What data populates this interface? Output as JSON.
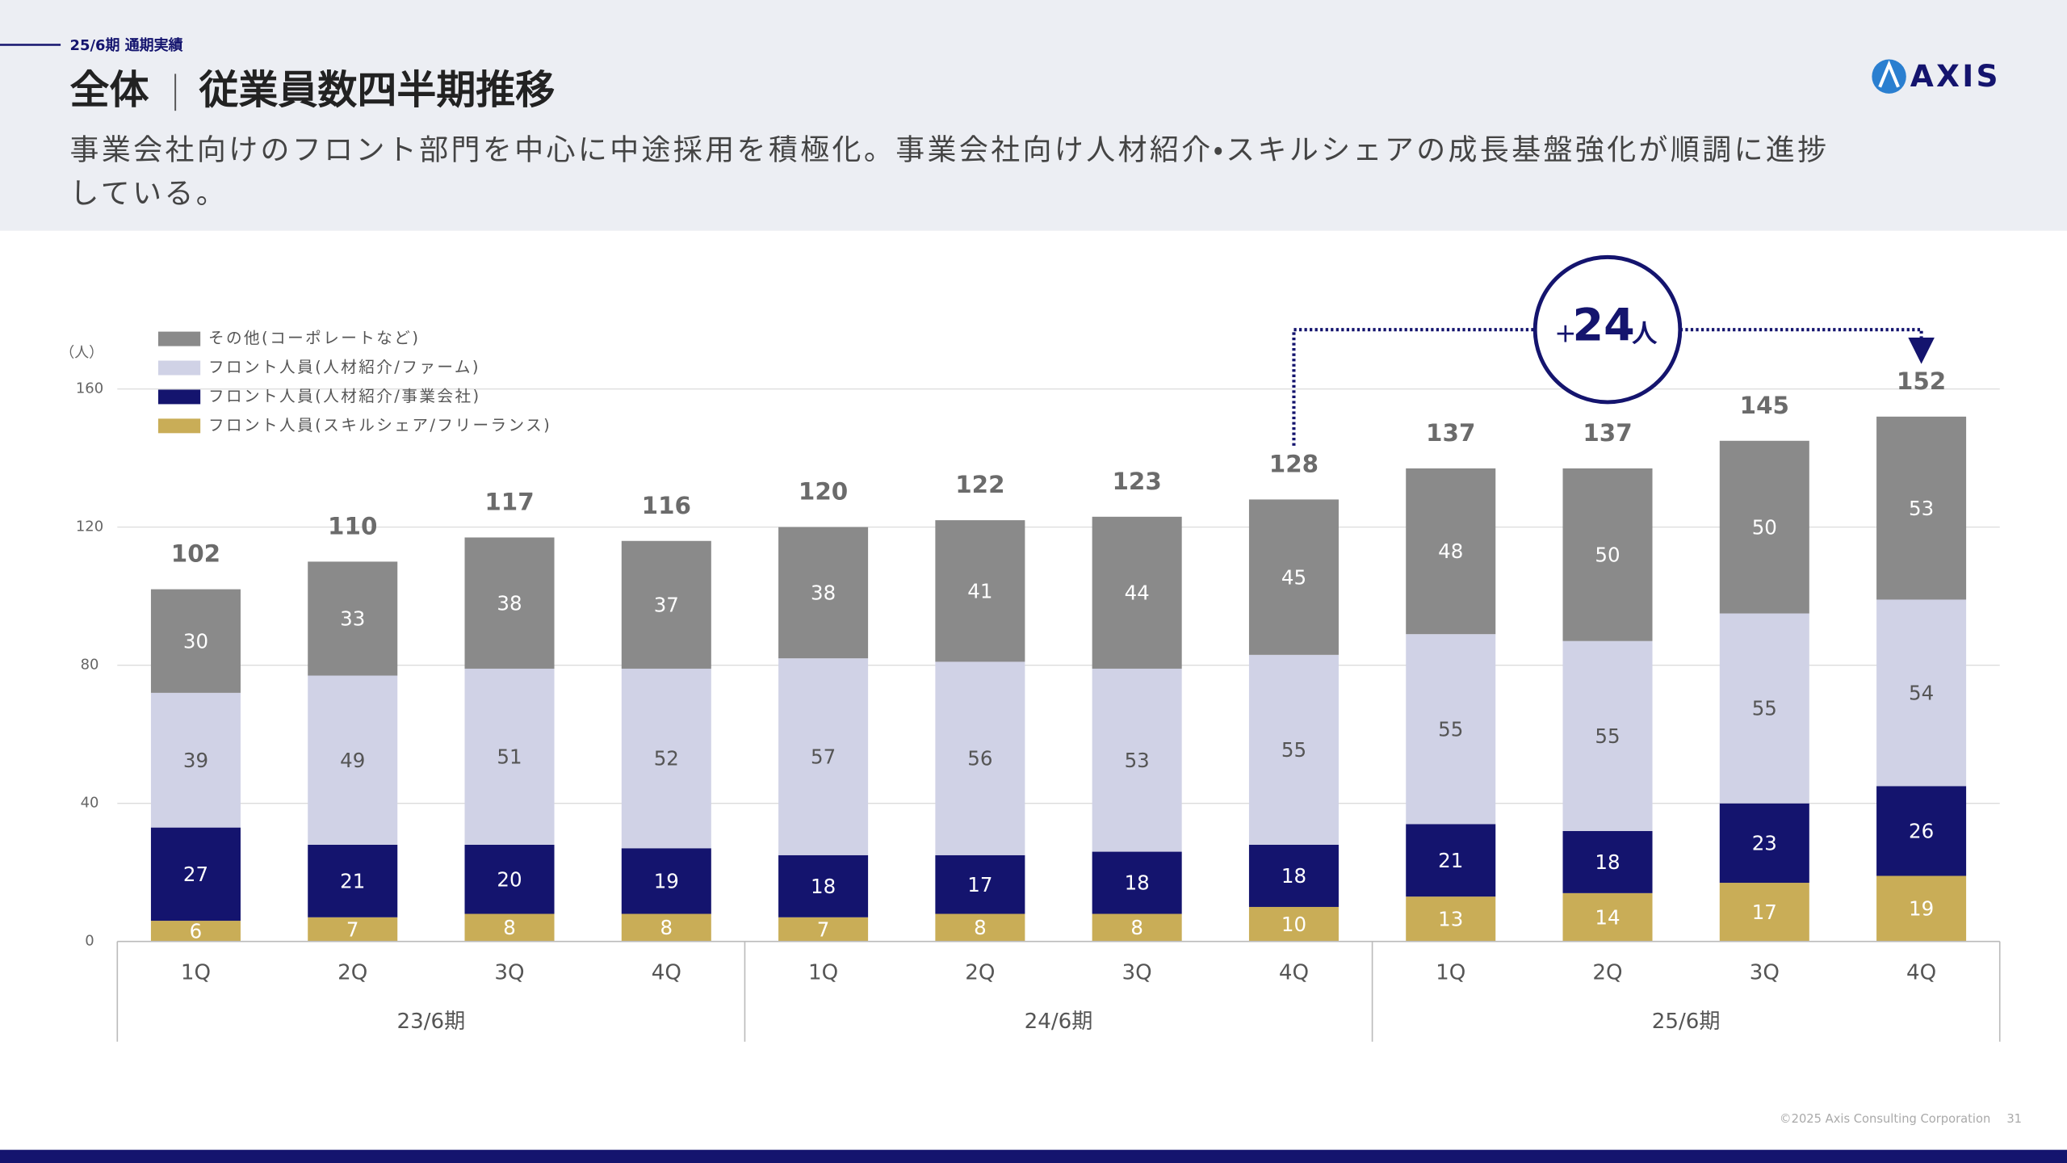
{
  "header": {
    "tag": "25/6期 通期実績",
    "title_main": "全体",
    "title_sub": "従業員数四半期推移",
    "description": [
      "事業会社向けのフロント部門を中心に中途採用を積極化。事業会社向け人材紹介・スキルシェアの成長基盤強化が順調に進捗",
      "している。"
    ],
    "logo": "AXIS"
  },
  "chart_data": {
    "type": "stacked-bar",
    "y_unit": "（人）",
    "categories": [
      "1Q",
      "2Q",
      "3Q",
      "4Q",
      "1Q",
      "2Q",
      "3Q",
      "4Q",
      "1Q",
      "2Q",
      "3Q",
      "4Q"
    ],
    "groups": [
      "23/6期",
      "24/6期",
      "25/6期"
    ],
    "series": [
      {
        "name": "フロント人員(スキルシェア/フリーランス)",
        "color": "#c9ad57",
        "label_color": "#ffffff",
        "values": [
          6,
          7,
          8,
          8,
          7,
          8,
          8,
          10,
          13,
          14,
          17,
          19
        ]
      },
      {
        "name": "フロント人員(人材紹介/事業会社)",
        "color": "#14146e",
        "label_color": "#ffffff",
        "values": [
          27,
          21,
          20,
          19,
          18,
          17,
          18,
          18,
          21,
          18,
          23,
          26
        ]
      },
      {
        "name": "フロント人員(人材紹介/ファーム)",
        "color": "#d0d2e6",
        "label_color": "#555555",
        "values": [
          39,
          49,
          51,
          52,
          57,
          56,
          53,
          55,
          55,
          55,
          55,
          54
        ]
      },
      {
        "name": "その他(コーポレートなど)",
        "color": "#8a8a8a",
        "label_color": "#ffffff",
        "values": [
          30,
          33,
          38,
          37,
          38,
          41,
          44,
          45,
          48,
          50,
          50,
          53
        ]
      }
    ],
    "totals": [
      102,
      110,
      117,
      116,
      120,
      122,
      123,
      128,
      137,
      137,
      145,
      152
    ],
    "ylim": [
      0,
      160
    ],
    "yticks": [
      0,
      40,
      80,
      120,
      160
    ],
    "grid": true,
    "annotation": {
      "sign": "+",
      "number": "24",
      "unit": "人"
    }
  },
  "footer": {
    "copyright": "©2025 Axis Consulting Corporation",
    "page": "31"
  }
}
